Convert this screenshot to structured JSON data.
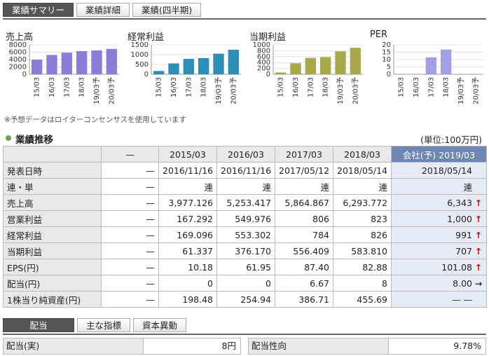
{
  "tabs": [
    "業績サマリー",
    "業績詳細",
    "業績(四半期)"
  ],
  "mini_charts": [
    {
      "title": "売上高",
      "color": "#8b7ed8",
      "y_ticks": [
        "8000",
        "6000",
        "4000",
        "2000",
        "0"
      ],
      "ymax": 8000,
      "categories": [
        "15/03",
        "16/03",
        "17/03",
        "18/03",
        "19/03予",
        "20/03予"
      ],
      "values": [
        3977,
        5253,
        5865,
        6294,
        6500,
        6900
      ]
    },
    {
      "title": "経常利益",
      "color": "#2b8fb8",
      "y_ticks": [
        "1500",
        "1000",
        "500",
        "0"
      ],
      "ymax": 1500,
      "categories": [
        "15/03",
        "16/03",
        "17/03",
        "18/03",
        "19/03予",
        "20/03予"
      ],
      "values": [
        169,
        553,
        784,
        826,
        1050,
        1250
      ]
    },
    {
      "title": "当期利益",
      "color": "#a9a84a",
      "y_ticks": [
        "1000",
        "800",
        "600",
        "400",
        "200",
        "0"
      ],
      "ymax": 1000,
      "categories": [
        "15/03",
        "16/03",
        "17/03",
        "18/03",
        "19/03予",
        "20/03予"
      ],
      "values": [
        61,
        376,
        556,
        584,
        780,
        900
      ]
    },
    {
      "title": "PER",
      "color": "#a29ee8",
      "y_ticks": [
        "20",
        "15",
        "10",
        "5",
        "0"
      ],
      "ymax": 20,
      "categories": [
        "15/03",
        "16/03",
        "17/03",
        "18/03",
        "19/03予",
        "20/03予"
      ],
      "values": [
        0,
        0,
        11.5,
        16.8,
        0,
        0
      ]
    }
  ],
  "note": "※予想データはロイターコンセンサスを使用しています",
  "section": {
    "title": "業績推移",
    "unit": "(単位:100万円)"
  },
  "table": {
    "header": [
      "—",
      "2015/03",
      "2016/03",
      "2017/03",
      "2018/03",
      "会社(予) 2019/03"
    ],
    "rows": [
      {
        "label": "発表日時",
        "cells": [
          "—",
          "2016/11/16",
          "2016/11/16",
          "2017/05/12",
          "2018/05/14",
          "2018/05/14"
        ],
        "arrow": ""
      },
      {
        "label": "連・単",
        "cells": [
          "—",
          "連",
          "連",
          "連",
          "連",
          "連"
        ],
        "arrow": ""
      },
      {
        "label": "売上高",
        "cells": [
          "—",
          "3,977.126",
          "5,253.417",
          "5,864.867",
          "6,293.772",
          "6,343"
        ],
        "arrow": "↑"
      },
      {
        "label": "営業利益",
        "cells": [
          "—",
          "167.292",
          "549.976",
          "806",
          "823",
          "1,000"
        ],
        "arrow": "↑"
      },
      {
        "label": "経常利益",
        "cells": [
          "—",
          "169.096",
          "553.302",
          "784",
          "826",
          "991"
        ],
        "arrow": "↑"
      },
      {
        "label": "当期利益",
        "cells": [
          "—",
          "61.337",
          "376.170",
          "556.409",
          "583.810",
          "707"
        ],
        "arrow": "↑"
      },
      {
        "label": "EPS(円)",
        "cells": [
          "—",
          "10.18",
          "61.95",
          "87.40",
          "82.88",
          "101.08"
        ],
        "arrow": "↑"
      },
      {
        "label": "配当(円)",
        "cells": [
          "—",
          "0",
          "0",
          "6.67",
          "8",
          "8.00"
        ],
        "arrow": "→"
      },
      {
        "label": "1株当り純資産(円)",
        "cells": [
          "—",
          "198.48",
          "254.94",
          "386.71",
          "455.69",
          "— —"
        ],
        "arrow": ""
      }
    ]
  },
  "tabs2": [
    "配当",
    "主な指標",
    "資本異動"
  ],
  "dividend": {
    "k1": "配当(実)",
    "v1": "8円",
    "k2": "配当性向",
    "v2": "9.78%"
  }
}
